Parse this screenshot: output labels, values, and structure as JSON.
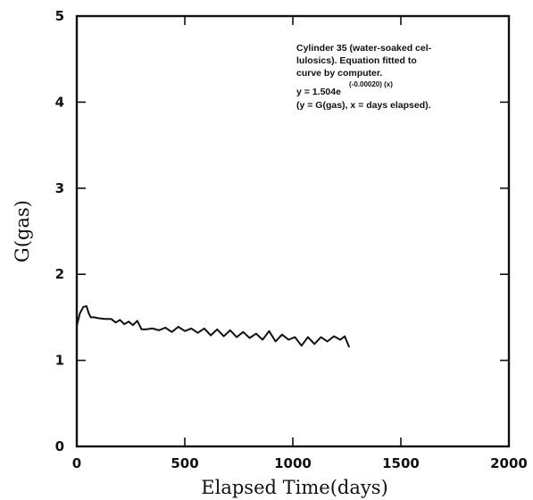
{
  "chart_data": {
    "type": "line",
    "title": "",
    "xlabel": "Elapsed Time(days)",
    "ylabel": "G(gas)",
    "xlim": [
      0,
      2000
    ],
    "ylim": [
      0,
      5
    ],
    "x_ticks": [
      0,
      500,
      1000,
      1500,
      2000
    ],
    "y_ticks": [
      0,
      1,
      2,
      3,
      4,
      5
    ],
    "grid": false,
    "annotation": {
      "lines": [
        "Cylinder 35 (water-soaked cel-",
        "lulosics). Equation fitted to",
        "curve by computer."
      ],
      "equation_base": "y = 1.504e",
      "equation_exponent": "(-0.00020) (x)",
      "equation_legend": "(y = G(gas), x = days elapsed)."
    },
    "series": [
      {
        "x": [
          0,
          15,
          30,
          45,
          55,
          65,
          80,
          100,
          130,
          160,
          180,
          200,
          220,
          240,
          260,
          280,
          300,
          320,
          350,
          380,
          410,
          440,
          470,
          500,
          530,
          560,
          590,
          620,
          650,
          680,
          710,
          740,
          770,
          800,
          830,
          860,
          890,
          920,
          950,
          980,
          1010,
          1040,
          1070,
          1100,
          1130,
          1160,
          1190,
          1220,
          1240,
          1260
        ],
        "y": [
          1.4,
          1.55,
          1.62,
          1.63,
          1.55,
          1.5,
          1.5,
          1.49,
          1.48,
          1.48,
          1.44,
          1.47,
          1.42,
          1.45,
          1.41,
          1.46,
          1.36,
          1.36,
          1.37,
          1.35,
          1.38,
          1.33,
          1.39,
          1.34,
          1.37,
          1.32,
          1.37,
          1.29,
          1.36,
          1.28,
          1.35,
          1.27,
          1.33,
          1.26,
          1.31,
          1.24,
          1.34,
          1.22,
          1.3,
          1.24,
          1.27,
          1.17,
          1.27,
          1.19,
          1.27,
          1.22,
          1.28,
          1.24,
          1.28,
          1.16
        ]
      }
    ]
  }
}
